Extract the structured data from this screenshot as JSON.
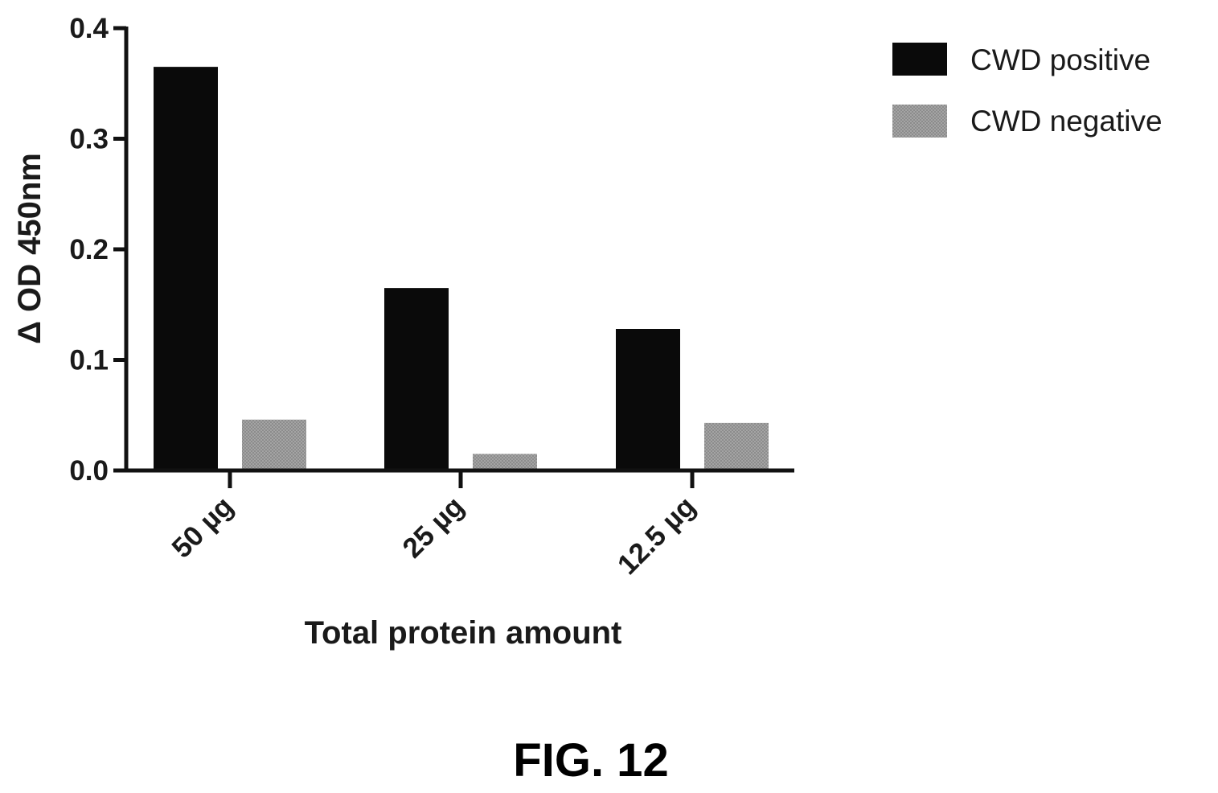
{
  "chart_data": {
    "type": "bar",
    "categories": [
      "50 µg",
      "25 µg",
      "12.5 µg"
    ],
    "series": [
      {
        "name": "CWD positive",
        "values": [
          0.365,
          0.165,
          0.128
        ],
        "color": "#0a0a0a"
      },
      {
        "name": "CWD negative",
        "values": [
          0.046,
          0.015,
          0.043
        ],
        "color": "#9a9a9a"
      }
    ],
    "xlabel": "Total protein amount",
    "ylabel": "Δ OD 450nm",
    "ylim": [
      0,
      0.4
    ],
    "yticks": [
      "0.0",
      "0.1",
      "0.2",
      "0.3",
      "0.4"
    ],
    "grid": false,
    "legend_position": "top-right"
  },
  "figure": {
    "caption": "FIG. 12"
  }
}
